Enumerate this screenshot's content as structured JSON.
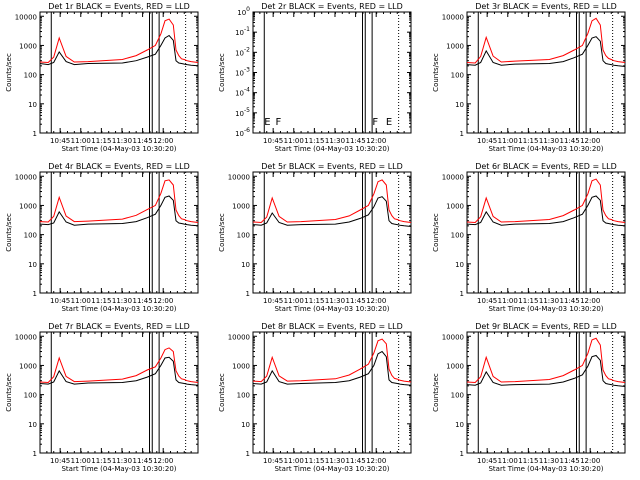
{
  "colors": {
    "events": "#000000",
    "lld": "#ff0000",
    "axis": "#000000",
    "background": "#ffffff"
  },
  "common": {
    "xlabel": "Start Time (04-May-03 10:30:20)",
    "ylabel": "Counts/sec",
    "xtick_labels": [
      "10:45",
      "11:00",
      "11:15",
      "11:30",
      "11:45",
      "12:00"
    ],
    "x_range_minutes": [
      0,
      115
    ]
  },
  "chart_data": [
    {
      "type": "line",
      "title": "Det 1r BLACK = Events, RED = LLD",
      "ylim": [
        1,
        14000
      ],
      "yscale": "log",
      "ytick_labels": [
        "1",
        "10",
        "100",
        "1000",
        "10000"
      ],
      "solid_markers_min": [
        8.2,
        79.7,
        81.7,
        86.7
      ],
      "dotted_markers_min": [
        106
      ],
      "text_markers": [],
      "has_data": true,
      "series": [
        {
          "name": "Events",
          "x": [
            0,
            6,
            10,
            14,
            19,
            25,
            35,
            60,
            70,
            78,
            84,
            88,
            91,
            94,
            97,
            99,
            101,
            103,
            105,
            107,
            110,
            115
          ],
          "y": [
            240,
            220,
            260,
            600,
            280,
            220,
            240,
            250,
            300,
            400,
            500,
            1000,
            1800,
            2200,
            1500,
            300,
            250,
            240,
            230,
            220,
            210,
            200
          ]
        },
        {
          "name": "LLD",
          "x": [
            0,
            6,
            10,
            14,
            19,
            25,
            35,
            60,
            70,
            78,
            84,
            88,
            91,
            94,
            97,
            99,
            101,
            103,
            105,
            107,
            110,
            115
          ],
          "y": [
            270,
            260,
            400,
            1800,
            420,
            270,
            280,
            330,
            450,
            700,
            1000,
            2500,
            7000,
            8000,
            5000,
            700,
            450,
            350,
            330,
            300,
            280,
            260
          ]
        }
      ]
    },
    {
      "type": "line",
      "title": "Det 2r BLACK = Events, RED = LLD",
      "ylim": [
        1e-06,
        1
      ],
      "yscale": "log",
      "ytick_labels": [
        "10^0",
        "10^-1",
        "10^-2",
        "10^-3",
        "10^-4",
        "10^-5",
        "10^-6"
      ],
      "solid_markers_min": [
        8.2,
        79.7,
        81.7,
        86.7
      ],
      "dotted_markers_min": [
        106
      ],
      "text_markers": [
        {
          "x": 10.5,
          "label": "E"
        },
        {
          "x": 18.5,
          "label": "F"
        },
        {
          "x": 89,
          "label": "F"
        },
        {
          "x": 99,
          "label": "E"
        }
      ],
      "has_data": false,
      "series": []
    },
    {
      "type": "line",
      "title": "Det 3r BLACK = Events, RED = LLD",
      "ylim": [
        1,
        14000
      ],
      "yscale": "log",
      "ytick_labels": [
        "1",
        "10",
        "100",
        "1000",
        "10000"
      ],
      "solid_markers_min": [
        8.2,
        79.7,
        81.7,
        86.7
      ],
      "dotted_markers_min": [
        106
      ],
      "text_markers": [],
      "has_data": true,
      "series": [
        {
          "name": "Events",
          "x": [
            0,
            6,
            10,
            14,
            19,
            25,
            35,
            60,
            70,
            78,
            84,
            88,
            91,
            94,
            97,
            99,
            101,
            103,
            105,
            107,
            110,
            115
          ],
          "y": [
            220,
            210,
            260,
            650,
            260,
            210,
            230,
            240,
            280,
            380,
            500,
            1000,
            1800,
            2000,
            1400,
            300,
            240,
            230,
            220,
            210,
            200,
            190
          ]
        },
        {
          "name": "LLD",
          "x": [
            0,
            6,
            10,
            14,
            19,
            25,
            35,
            60,
            70,
            78,
            84,
            88,
            91,
            94,
            97,
            99,
            101,
            103,
            105,
            107,
            110,
            115
          ],
          "y": [
            260,
            250,
            420,
            1900,
            430,
            270,
            290,
            330,
            450,
            700,
            1000,
            2600,
            7000,
            8500,
            5000,
            700,
            450,
            360,
            330,
            300,
            280,
            260
          ]
        }
      ]
    },
    {
      "type": "line",
      "title": "Det 4r BLACK = Events, RED = LLD",
      "ylim": [
        1,
        14000
      ],
      "yscale": "log",
      "ytick_labels": [
        "1",
        "10",
        "100",
        "1000",
        "10000"
      ],
      "solid_markers_min": [
        8.2,
        79.7,
        81.7,
        86.7
      ],
      "dotted_markers_min": [
        106
      ],
      "text_markers": [],
      "has_data": true,
      "series": [
        {
          "name": "Events",
          "x": [
            0,
            6,
            10,
            14,
            19,
            25,
            35,
            60,
            70,
            78,
            84,
            88,
            91,
            94,
            97,
            99,
            101,
            103,
            105,
            107,
            110,
            115
          ],
          "y": [
            230,
            220,
            250,
            600,
            270,
            210,
            230,
            240,
            280,
            380,
            500,
            1000,
            1900,
            2100,
            1500,
            300,
            250,
            240,
            230,
            220,
            210,
            200
          ]
        },
        {
          "name": "LLD",
          "x": [
            0,
            6,
            10,
            14,
            19,
            25,
            35,
            60,
            70,
            78,
            84,
            88,
            91,
            94,
            97,
            99,
            101,
            103,
            105,
            107,
            110,
            115
          ],
          "y": [
            280,
            270,
            420,
            1900,
            430,
            280,
            290,
            340,
            460,
            720,
            1000,
            2600,
            7000,
            7500,
            5000,
            700,
            450,
            350,
            330,
            300,
            280,
            260
          ]
        }
      ]
    },
    {
      "type": "line",
      "title": "Det 5r BLACK = Events, RED = LLD",
      "ylim": [
        1,
        14000
      ],
      "yscale": "log",
      "ytick_labels": [
        "1",
        "10",
        "100",
        "1000",
        "10000"
      ],
      "solid_markers_min": [
        8.2,
        79.7,
        81.7,
        86.7
      ],
      "dotted_markers_min": [
        106
      ],
      "text_markers": [],
      "has_data": true,
      "series": [
        {
          "name": "Events",
          "x": [
            0,
            6,
            10,
            14,
            19,
            25,
            35,
            60,
            70,
            78,
            84,
            88,
            91,
            94,
            97,
            99,
            101,
            103,
            105,
            107,
            110,
            115
          ],
          "y": [
            220,
            210,
            250,
            550,
            260,
            210,
            220,
            230,
            270,
            360,
            480,
            900,
            1800,
            2000,
            1400,
            300,
            240,
            230,
            220,
            210,
            200,
            190
          ]
        },
        {
          "name": "LLD",
          "x": [
            0,
            6,
            10,
            14,
            19,
            25,
            35,
            60,
            70,
            78,
            84,
            88,
            91,
            94,
            97,
            99,
            101,
            103,
            105,
            107,
            110,
            115
          ],
          "y": [
            270,
            260,
            400,
            1800,
            420,
            270,
            280,
            330,
            440,
            700,
            1000,
            2500,
            6500,
            7500,
            5000,
            700,
            450,
            350,
            330,
            300,
            280,
            260
          ]
        }
      ]
    },
    {
      "type": "line",
      "title": "Det 6r BLACK = Events, RED = LLD",
      "ylim": [
        1,
        14000
      ],
      "yscale": "log",
      "ytick_labels": [
        "1",
        "10",
        "100",
        "1000",
        "10000"
      ],
      "solid_markers_min": [
        8.2,
        79.7,
        81.7,
        86.7
      ],
      "dotted_markers_min": [
        106
      ],
      "text_markers": [],
      "has_data": true,
      "series": [
        {
          "name": "Events",
          "x": [
            0,
            6,
            10,
            14,
            19,
            25,
            35,
            60,
            70,
            78,
            84,
            88,
            91,
            94,
            97,
            99,
            101,
            103,
            105,
            107,
            110,
            115
          ],
          "y": [
            230,
            220,
            260,
            600,
            270,
            210,
            230,
            240,
            280,
            380,
            500,
            1000,
            1900,
            2100,
            1500,
            300,
            250,
            240,
            230,
            220,
            210,
            200
          ]
        },
        {
          "name": "LLD",
          "x": [
            0,
            6,
            10,
            14,
            19,
            25,
            35,
            60,
            70,
            78,
            84,
            88,
            91,
            94,
            97,
            99,
            101,
            103,
            105,
            107,
            110,
            115
          ],
          "y": [
            270,
            260,
            410,
            1800,
            420,
            270,
            280,
            330,
            450,
            700,
            1000,
            2500,
            7000,
            8000,
            5000,
            700,
            450,
            350,
            330,
            300,
            280,
            260
          ]
        }
      ]
    },
    {
      "type": "line",
      "title": "Det 7r BLACK = Events, RED = LLD",
      "ylim": [
        1,
        14000
      ],
      "yscale": "log",
      "ytick_labels": [
        "1",
        "10",
        "100",
        "1000",
        "10000"
      ],
      "solid_markers_min": [
        8.2,
        79.7,
        81.7,
        86.7
      ],
      "dotted_markers_min": [
        106
      ],
      "text_markers": [],
      "has_data": true,
      "series": [
        {
          "name": "Events",
          "x": [
            0,
            6,
            10,
            14,
            19,
            25,
            35,
            60,
            70,
            78,
            84,
            88,
            91,
            94,
            97,
            99,
            101,
            103,
            105,
            107,
            110,
            115
          ],
          "y": [
            240,
            230,
            270,
            650,
            280,
            230,
            250,
            260,
            300,
            400,
            520,
            1000,
            1800,
            1900,
            1400,
            320,
            260,
            250,
            240,
            230,
            220,
            210
          ]
        },
        {
          "name": "LLD",
          "x": [
            0,
            6,
            10,
            14,
            19,
            25,
            35,
            60,
            70,
            78,
            84,
            88,
            91,
            94,
            97,
            99,
            101,
            103,
            105,
            107,
            110,
            115
          ],
          "y": [
            270,
            260,
            410,
            1800,
            420,
            280,
            290,
            340,
            450,
            700,
            900,
            1800,
            3500,
            4000,
            3000,
            650,
            430,
            350,
            330,
            300,
            280,
            260
          ]
        }
      ]
    },
    {
      "type": "line",
      "title": "Det 8r BLACK = Events, RED = LLD",
      "ylim": [
        1,
        14000
      ],
      "yscale": "log",
      "ytick_labels": [
        "1",
        "10",
        "100",
        "1000",
        "10000"
      ],
      "solid_markers_min": [
        8.2,
        79.7,
        81.7,
        86.7
      ],
      "dotted_markers_min": [
        106
      ],
      "text_markers": [],
      "has_data": true,
      "series": [
        {
          "name": "Events",
          "x": [
            0,
            6,
            10,
            14,
            19,
            25,
            35,
            60,
            70,
            78,
            84,
            88,
            91,
            94,
            97,
            99,
            101,
            103,
            105,
            107,
            110,
            115
          ],
          "y": [
            240,
            230,
            270,
            650,
            280,
            230,
            240,
            260,
            300,
            400,
            520,
            1000,
            2500,
            3000,
            2000,
            320,
            260,
            250,
            240,
            230,
            220,
            210
          ]
        },
        {
          "name": "LLD",
          "x": [
            0,
            6,
            10,
            14,
            19,
            25,
            35,
            60,
            70,
            78,
            84,
            88,
            91,
            94,
            97,
            99,
            101,
            103,
            105,
            107,
            110,
            115
          ],
          "y": [
            290,
            280,
            430,
            1900,
            440,
            290,
            300,
            350,
            470,
            750,
            1100,
            2700,
            7000,
            8000,
            5500,
            750,
            460,
            360,
            340,
            310,
            290,
            270
          ]
        }
      ]
    },
    {
      "type": "line",
      "title": "Det 9r BLACK = Events, RED = LLD",
      "ylim": [
        1,
        14000
      ],
      "yscale": "log",
      "ytick_labels": [
        "1",
        "10",
        "100",
        "1000",
        "10000"
      ],
      "solid_markers_min": [
        8.2,
        79.7,
        81.7,
        86.7
      ],
      "dotted_markers_min": [
        106
      ],
      "text_markers": [],
      "has_data": true,
      "series": [
        {
          "name": "Events",
          "x": [
            0,
            6,
            10,
            14,
            19,
            25,
            35,
            60,
            70,
            78,
            84,
            88,
            91,
            94,
            97,
            99,
            101,
            103,
            105,
            107,
            110,
            115
          ],
          "y": [
            220,
            210,
            250,
            600,
            260,
            210,
            220,
            230,
            270,
            360,
            480,
            950,
            2000,
            2200,
            1500,
            300,
            240,
            230,
            220,
            210,
            200,
            190
          ]
        },
        {
          "name": "LLD",
          "x": [
            0,
            6,
            10,
            14,
            19,
            25,
            35,
            60,
            70,
            78,
            84,
            88,
            91,
            94,
            97,
            99,
            101,
            103,
            105,
            107,
            110,
            115
          ],
          "y": [
            270,
            260,
            410,
            1900,
            420,
            270,
            280,
            330,
            450,
            700,
            1000,
            2600,
            7500,
            8500,
            5000,
            700,
            450,
            350,
            330,
            300,
            280,
            260
          ]
        }
      ]
    }
  ]
}
